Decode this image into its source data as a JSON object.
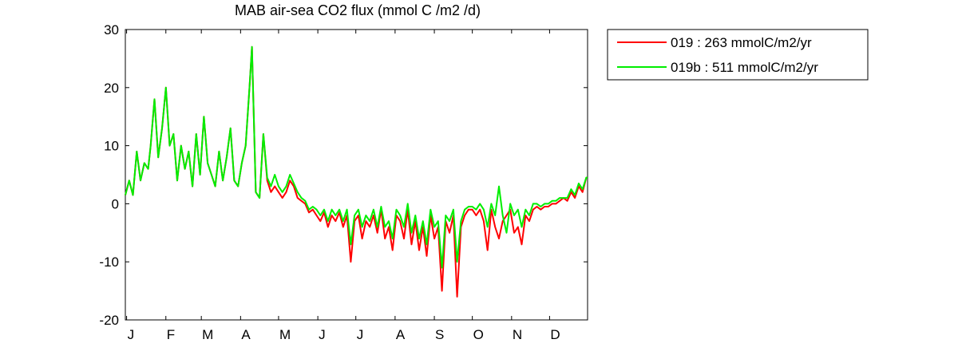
{
  "chart_data": {
    "type": "line",
    "title": "MAB  air-sea CO2 flux (mmol C /m2 /d)",
    "xlabel": "",
    "ylabel": "",
    "xlim": [
      0,
      365
    ],
    "ylim": [
      -20,
      30
    ],
    "yticks": [
      -20,
      -10,
      0,
      10,
      20,
      30
    ],
    "month_ticks": [
      {
        "label": "J",
        "day": 1
      },
      {
        "label": "F",
        "day": 32
      },
      {
        "label": "M",
        "day": 60
      },
      {
        "label": "A",
        "day": 91
      },
      {
        "label": "M",
        "day": 121
      },
      {
        "label": "J",
        "day": 152
      },
      {
        "label": "J",
        "day": 182
      },
      {
        "label": "A",
        "day": 213
      },
      {
        "label": "S",
        "day": 244
      },
      {
        "label": "O",
        "day": 274
      },
      {
        "label": "N",
        "day": 305
      },
      {
        "label": "D",
        "day": 335
      }
    ],
    "grid": false,
    "legend_position": "outside-top-right",
    "series": [
      {
        "name": "019 : 263 mmolC/m2/yr",
        "color": "#ff0000",
        "x": [
          0,
          3,
          6,
          9,
          12,
          15,
          18,
          20,
          23,
          26,
          29,
          32,
          35,
          38,
          41,
          44,
          47,
          50,
          53,
          56,
          59,
          62,
          65,
          68,
          71,
          74,
          77,
          80,
          83,
          86,
          89,
          92,
          95,
          98,
          100,
          103,
          106,
          109,
          112,
          115,
          118,
          121,
          124,
          127,
          130,
          133,
          136,
          139,
          142,
          145,
          148,
          151,
          154,
          157,
          160,
          163,
          166,
          169,
          172,
          175,
          178,
          181,
          184,
          187,
          190,
          193,
          196,
          199,
          202,
          205,
          208,
          211,
          214,
          217,
          220,
          223,
          226,
          229,
          232,
          235,
          238,
          241,
          244,
          247,
          250,
          253,
          256,
          259,
          262,
          265,
          268,
          271,
          274,
          277,
          280,
          283,
          286,
          289,
          292,
          295,
          298,
          301,
          304,
          307,
          310,
          313,
          316,
          319,
          322,
          325,
          328,
          331,
          334,
          337,
          340,
          343,
          346,
          349,
          352,
          355,
          358,
          361,
          364,
          365
        ],
        "y": [
          1.5,
          4,
          1.5,
          9,
          4,
          7,
          6,
          10,
          18,
          8,
          13,
          20,
          10,
          12,
          4,
          10,
          6,
          9,
          3,
          12,
          5,
          15,
          7,
          5,
          3,
          9,
          4,
          8,
          13,
          4,
          3,
          7,
          10,
          20,
          27,
          2,
          1,
          12,
          4,
          2,
          3,
          2,
          1,
          2,
          4,
          3,
          1,
          0.5,
          0,
          -1.5,
          -1,
          -2,
          -3,
          -1.5,
          -4,
          -2,
          -3,
          -1.5,
          -4,
          -2,
          -10,
          -3,
          -2,
          -6,
          -3,
          -4,
          -2,
          -5,
          -1,
          -6,
          -4,
          -8,
          -2,
          -3,
          -6,
          -1,
          -7,
          -3,
          -8,
          -4,
          -9,
          -2,
          -6,
          -4,
          -15,
          -3,
          -5,
          -2,
          -16,
          -4,
          -2,
          -1,
          -1,
          -2,
          -1,
          -3,
          -8,
          -1,
          -4,
          -6,
          -3,
          -2,
          -1,
          -5,
          -4,
          -7,
          -2,
          -3,
          -1,
          -0.5,
          -1,
          -0.5,
          -0.5,
          0,
          0,
          0.5,
          1,
          0.5,
          2,
          1,
          3,
          2,
          4.5,
          4.5
        ]
      },
      {
        "name": "019b : 511 mmolC/m2/yr",
        "color": "#00ee00",
        "x": [
          0,
          3,
          6,
          9,
          12,
          15,
          18,
          20,
          23,
          26,
          29,
          32,
          35,
          38,
          41,
          44,
          47,
          50,
          53,
          56,
          59,
          62,
          65,
          68,
          71,
          74,
          77,
          80,
          83,
          86,
          89,
          92,
          95,
          98,
          100,
          103,
          106,
          109,
          112,
          115,
          118,
          121,
          124,
          127,
          130,
          133,
          136,
          139,
          142,
          145,
          148,
          151,
          154,
          157,
          160,
          163,
          166,
          169,
          172,
          175,
          178,
          181,
          184,
          187,
          190,
          193,
          196,
          199,
          202,
          205,
          208,
          211,
          214,
          217,
          220,
          223,
          226,
          229,
          232,
          235,
          238,
          241,
          244,
          247,
          250,
          253,
          256,
          259,
          262,
          265,
          268,
          271,
          274,
          277,
          280,
          283,
          286,
          289,
          292,
          295,
          298,
          301,
          304,
          307,
          310,
          313,
          316,
          319,
          322,
          325,
          328,
          331,
          334,
          337,
          340,
          343,
          346,
          349,
          352,
          355,
          358,
          361,
          364,
          365
        ],
        "y": [
          1.5,
          4,
          1.5,
          9,
          4,
          7,
          6,
          10,
          18,
          8,
          13,
          20,
          10,
          12,
          4,
          10,
          6,
          9,
          3,
          12,
          5,
          15,
          7,
          5,
          3,
          9,
          4,
          8,
          13,
          4,
          3,
          7,
          10,
          20,
          27,
          2,
          1,
          12,
          4.5,
          3,
          5,
          3,
          2,
          3,
          5,
          3.5,
          2,
          1,
          0.5,
          -1,
          -0.5,
          -1,
          -2,
          -1,
          -3,
          -1,
          -2,
          -1,
          -3,
          -1,
          -7,
          -2,
          -1,
          -4,
          -2,
          -3,
          -1,
          -4,
          -0.5,
          -4,
          -3,
          -6,
          -1,
          -2,
          -4,
          0,
          -5,
          -2,
          -6,
          -3,
          -7,
          -1,
          -4,
          -3,
          -11,
          -2,
          -3,
          -1,
          -10,
          -3,
          -1,
          -0.5,
          -0.5,
          -1,
          0,
          -1,
          -4,
          0,
          -2,
          3,
          -2,
          -5,
          0,
          -2,
          -1,
          -4,
          -1,
          -2,
          0,
          0,
          -0.5,
          0,
          0,
          0.5,
          0.5,
          1,
          1,
          1,
          2.5,
          1.5,
          3.5,
          2.5,
          4.5,
          4.5
        ]
      }
    ]
  }
}
